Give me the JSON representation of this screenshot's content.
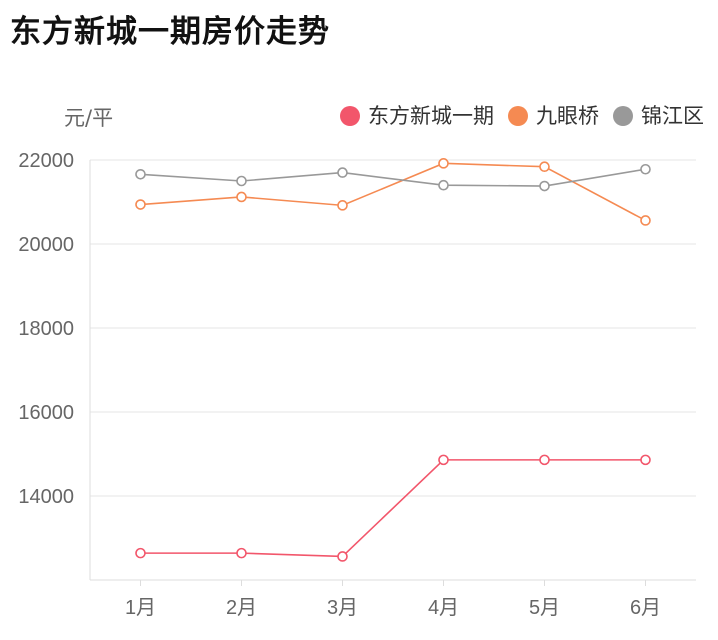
{
  "chart_data": {
    "type": "line",
    "title": "东方新城一期房价走势",
    "ylabel": "元/平",
    "categories": [
      "1月",
      "2月",
      "3月",
      "4月",
      "5月",
      "6月"
    ],
    "ylim": [
      12000,
      22000
    ],
    "yticks": [
      22000,
      20000,
      18000,
      16000,
      14000
    ],
    "legend_position": "top-right",
    "series": [
      {
        "name": "东方新城一期",
        "color": "#f2566b",
        "values": [
          12640,
          12640,
          12560,
          14860,
          14860,
          14860
        ]
      },
      {
        "name": "九眼桥",
        "color": "#f58a52",
        "values": [
          20940,
          21120,
          20920,
          21920,
          21840,
          20560
        ]
      },
      {
        "name": "锦江区",
        "color": "#999999",
        "values": [
          21660,
          21500,
          21700,
          21400,
          21380,
          21780
        ]
      }
    ]
  }
}
